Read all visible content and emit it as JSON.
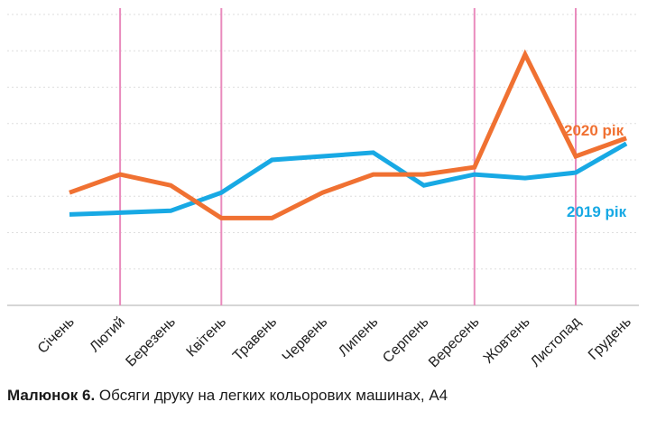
{
  "chart_data": {
    "type": "line",
    "categories": [
      "Січень",
      "Лютий",
      "Березень",
      "Квітень",
      "Травень",
      "Червень",
      "Липень",
      "Серпень",
      "Вересень",
      "Жовтень",
      "Листопад",
      "Грудень"
    ],
    "series": [
      {
        "name": "2020 рік",
        "color": "#f07132",
        "values": [
          2.1,
          2.6,
          2.3,
          1.4,
          1.4,
          2.1,
          2.6,
          2.6,
          2.8,
          5.9,
          3.1,
          3.6
        ]
      },
      {
        "name": "2019 рік",
        "color": "#18a9e4",
        "values": [
          1.5,
          1.55,
          1.6,
          2.1,
          3.0,
          3.1,
          3.2,
          2.3,
          2.6,
          2.5,
          2.65,
          3.45
        ]
      }
    ],
    "highlighted_categories": [
      "Лютий",
      "Квітень",
      "Вересень",
      "Листопад"
    ],
    "highlight_color": "#e98bbd",
    "ylim": [
      -1,
      7
    ],
    "grid": true,
    "xlabel": "",
    "ylabel": ""
  },
  "caption": {
    "label": "Малюнок 6.",
    "text": " Обсяги друку на легких кольорових машинах, А4"
  }
}
